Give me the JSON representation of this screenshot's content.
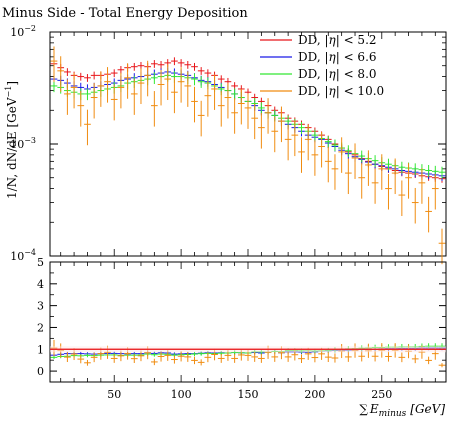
{
  "chart_data": {
    "type": "scatter",
    "title": "Minus Side - Total Energy Deposition",
    "xlabel": "∑ E_minus [GeV]",
    "xlabel_parts": {
      "sum": "∑",
      "E": "E",
      "sub": "minus",
      "unit": "[GeV]"
    },
    "ylabel": "1/N, dN/dE [GeV⁻¹]",
    "ylabel_parts": {
      "main": "1/N, dN/dE [GeV",
      "sup": "−1",
      "close": "]"
    },
    "xlim": [
      2,
      298
    ],
    "main_panel": {
      "yscale": "log",
      "ylim": [
        0.0001,
        0.01
      ],
      "y_ticks": [
        {
          "value": 0.01,
          "base": "10",
          "exp": "−2"
        },
        {
          "value": 0.001,
          "base": "10",
          "exp": "−3"
        },
        {
          "value": 0.0001,
          "base": "10",
          "exp": "−4"
        }
      ]
    },
    "ratio_panel": {
      "ylim": [
        -0.5,
        5
      ],
      "y_ticks": [
        "0",
        "1",
        "2",
        "3",
        "4",
        "5"
      ],
      "reference_value": 1
    },
    "x_ticks": [
      "50",
      "100",
      "150",
      "200",
      "250"
    ],
    "legend_placement": "top-right",
    "series": [
      {
        "name": "DD, |η| < 5.2",
        "label_prefix": "DD, ",
        "label_var": "η",
        "label_suffix": " < 5.2",
        "color": "#e8161a"
      },
      {
        "name": "DD, |η| < 6.6",
        "label_prefix": "DD, ",
        "label_var": "η",
        "label_suffix": " < 6.6",
        "color": "#1a1ae8"
      },
      {
        "name": "DD, |η| < 8.0",
        "label_prefix": "DD, ",
        "label_var": "η",
        "label_suffix": " < 8.0",
        "color": "#33e833"
      },
      {
        "name": "DD, |η| < 10.0",
        "label_prefix": "DD, ",
        "label_var": "η",
        "label_suffix": " < 10.0",
        "color": "#f08c10"
      }
    ],
    "x": [
      5,
      10,
      15,
      20,
      25,
      30,
      35,
      40,
      45,
      50,
      55,
      60,
      65,
      70,
      75,
      80,
      85,
      90,
      95,
      100,
      105,
      110,
      115,
      120,
      125,
      130,
      135,
      140,
      145,
      150,
      155,
      160,
      165,
      170,
      175,
      180,
      185,
      190,
      195,
      200,
      205,
      210,
      215,
      220,
      225,
      230,
      235,
      240,
      245,
      250,
      255,
      260,
      265,
      270,
      275,
      280,
      285,
      290,
      295
    ],
    "x_bin_halfwidth": 2.5,
    "values": {
      "DD, |η| < 5.2": [
        0.0052,
        0.0048,
        0.0044,
        0.0041,
        0.004,
        0.0039,
        0.0041,
        0.0041,
        0.0042,
        0.0043,
        0.0046,
        0.0048,
        0.0049,
        0.005,
        0.0049,
        0.0052,
        0.0051,
        0.0053,
        0.0055,
        0.0053,
        0.0051,
        0.0049,
        0.0045,
        0.0043,
        0.0041,
        0.0038,
        0.0036,
        0.0033,
        0.0031,
        0.0029,
        0.0026,
        0.0024,
        0.0022,
        0.002,
        0.0019,
        0.0017,
        0.0016,
        0.0015,
        0.0014,
        0.0013,
        0.0012,
        0.0011,
        0.001,
        0.00092,
        0.00085,
        0.0008,
        0.00074,
        0.0007,
        0.00066,
        0.00063,
        0.0006,
        0.00058,
        0.00056,
        0.00055,
        0.00054,
        0.00052,
        0.00051,
        0.0005,
        0.00049
      ],
      "DD, |η| < 6.6": [
        0.0038,
        0.0037,
        0.0035,
        0.0033,
        0.0032,
        0.0031,
        0.0032,
        0.0033,
        0.0034,
        0.0035,
        0.0037,
        0.0038,
        0.0039,
        0.004,
        0.0041,
        0.0042,
        0.0043,
        0.0044,
        0.0043,
        0.0042,
        0.0041,
        0.0039,
        0.0037,
        0.0036,
        0.0034,
        0.0032,
        0.003,
        0.0028,
        0.0026,
        0.0024,
        0.0022,
        0.002,
        0.0019,
        0.0018,
        0.0016,
        0.0015,
        0.0014,
        0.0013,
        0.0012,
        0.00115,
        0.0011,
        0.00102,
        0.00095,
        0.00088,
        0.00082,
        0.00077,
        0.00073,
        0.00069,
        0.00066,
        0.00064,
        0.00062,
        0.0006,
        0.00058,
        0.00057,
        0.00056,
        0.00055,
        0.00054,
        0.00053,
        0.00052
      ],
      "DD, |η| < 8.0": [
        0.0033,
        0.0032,
        0.003,
        0.0029,
        0.0028,
        0.0028,
        0.0029,
        0.003,
        0.0031,
        0.0032,
        0.0033,
        0.0035,
        0.0036,
        0.0037,
        0.0038,
        0.0039,
        0.004,
        0.0041,
        0.004,
        0.004,
        0.0039,
        0.0038,
        0.0036,
        0.0035,
        0.0033,
        0.0031,
        0.003,
        0.0028,
        0.0026,
        0.0024,
        0.0023,
        0.0021,
        0.0019,
        0.0018,
        0.0017,
        0.0016,
        0.0015,
        0.0014,
        0.0013,
        0.0012,
        0.00112,
        0.00105,
        0.00098,
        0.00092,
        0.00087,
        0.00082,
        0.00078,
        0.00074,
        0.00071,
        0.00068,
        0.00066,
        0.00064,
        0.00062,
        0.00061,
        0.0006,
        0.00059,
        0.00058,
        0.00057,
        0.00056
      ],
      "DD, |η| < 10.0": [
        0.0055,
        0.0045,
        0.0028,
        0.0032,
        0.0022,
        0.0015,
        0.0026,
        0.0033,
        0.0036,
        0.0025,
        0.0032,
        0.0039,
        0.0028,
        0.0035,
        0.0041,
        0.0022,
        0.0034,
        0.0038,
        0.0029,
        0.0036,
        0.0033,
        0.0024,
        0.0018,
        0.0027,
        0.0031,
        0.0022,
        0.0026,
        0.0019,
        0.0023,
        0.0021,
        0.0017,
        0.0014,
        0.0019,
        0.0013,
        0.0016,
        0.0011,
        0.0012,
        0.00085,
        0.0011,
        0.0008,
        0.00095,
        0.0007,
        0.0006,
        0.00085,
        0.00055,
        0.00075,
        0.0005,
        0.00065,
        0.00045,
        0.0006,
        0.0004,
        0.00055,
        0.00035,
        0.0005,
        0.0003,
        0.00045,
        0.00025,
        0.0004,
        0.00013
      ]
    },
    "rel_errors": {
      "DD, |η| < 5.2": 0.08,
      "DD, |η| < 6.6": 0.1,
      "DD, |η| < 8.0": 0.12,
      "DD, |η| < 10.0": 0.35
    },
    "ratio_values": {
      "DD, |η| < 5.2": [
        1,
        1,
        1,
        1,
        1,
        1,
        1,
        1,
        1,
        1,
        1,
        1,
        1,
        1,
        1,
        1,
        1,
        1,
        1,
        1,
        1,
        1,
        1,
        1,
        1,
        1,
        1,
        1,
        1,
        1,
        1,
        1,
        1,
        1,
        1,
        1,
        1,
        1,
        1,
        1,
        1,
        1,
        1,
        1,
        1,
        1,
        1,
        1,
        1,
        1,
        1,
        1,
        1,
        1,
        1,
        1,
        1,
        1,
        1
      ],
      "DD, |η| < 6.6": [
        0.73,
        0.77,
        0.8,
        0.8,
        0.8,
        0.79,
        0.78,
        0.8,
        0.81,
        0.81,
        0.8,
        0.79,
        0.8,
        0.8,
        0.84,
        0.81,
        0.84,
        0.83,
        0.78,
        0.79,
        0.8,
        0.8,
        0.82,
        0.84,
        0.83,
        0.84,
        0.83,
        0.85,
        0.84,
        0.83,
        0.85,
        0.83,
        0.86,
        0.9,
        0.84,
        0.88,
        0.88,
        0.87,
        0.86,
        0.88,
        0.92,
        0.93,
        0.95,
        0.96,
        0.96,
        0.96,
        0.99,
        0.99,
        1.0,
        1.02,
        1.03,
        1.03,
        1.04,
        1.04,
        1.04,
        1.06,
        1.06,
        1.06,
        1.06
      ],
      "DD, |η| < 8.0": [
        0.63,
        0.67,
        0.68,
        0.71,
        0.7,
        0.72,
        0.71,
        0.73,
        0.74,
        0.74,
        0.72,
        0.73,
        0.73,
        0.74,
        0.78,
        0.75,
        0.78,
        0.77,
        0.73,
        0.75,
        0.76,
        0.78,
        0.8,
        0.81,
        0.8,
        0.82,
        0.83,
        0.85,
        0.84,
        0.83,
        0.88,
        0.88,
        0.86,
        0.9,
        0.89,
        0.94,
        0.94,
        0.93,
        0.93,
        0.92,
        0.93,
        0.95,
        0.98,
        1.0,
        1.02,
        1.03,
        1.05,
        1.06,
        1.08,
        1.08,
        1.1,
        1.1,
        1.11,
        1.11,
        1.11,
        1.13,
        1.14,
        1.14,
        1.14
      ],
      "DD, |η| < 10.0": [
        1.06,
        0.94,
        0.64,
        0.78,
        0.55,
        0.38,
        0.63,
        0.8,
        0.86,
        0.58,
        0.7,
        0.81,
        0.57,
        0.7,
        0.84,
        0.42,
        0.67,
        0.72,
        0.53,
        0.68,
        0.65,
        0.49,
        0.4,
        0.63,
        0.76,
        0.58,
        0.72,
        0.58,
        0.74,
        0.72,
        0.65,
        0.58,
        0.86,
        0.65,
        0.84,
        0.65,
        0.75,
        0.57,
        0.79,
        0.62,
        0.79,
        0.64,
        0.6,
        0.92,
        0.65,
        0.94,
        0.68,
        0.93,
        0.68,
        0.95,
        0.67,
        0.95,
        0.63,
        0.91,
        0.56,
        0.87,
        0.49,
        0.8,
        0.27
      ]
    }
  }
}
